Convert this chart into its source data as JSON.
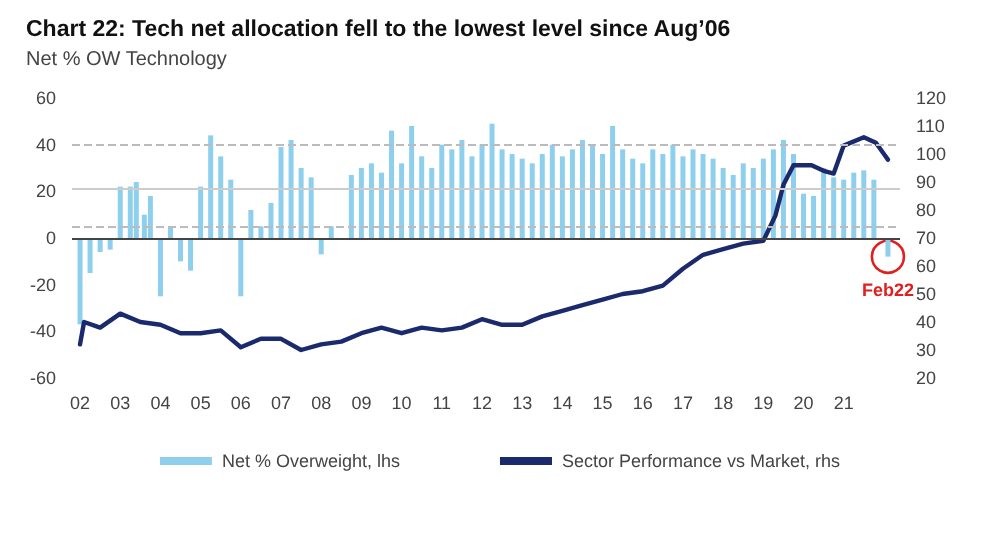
{
  "chart_data": {
    "type": "bar",
    "title": "Chart 22: Tech net allocation fell to the lowest level since Aug’06",
    "subtitle": "Net % OW Technology",
    "x": [
      2002.0,
      2002.25,
      2002.5,
      2002.75,
      2003.0,
      2003.25,
      2003.4,
      2003.6,
      2003.75,
      2004.0,
      2004.25,
      2004.5,
      2004.75,
      2005.0,
      2005.25,
      2005.5,
      2005.75,
      2006.0,
      2006.25,
      2006.5,
      2006.75,
      2007.0,
      2007.25,
      2007.5,
      2007.75,
      2008.0,
      2008.25,
      2008.5,
      2008.75,
      2009.0,
      2009.25,
      2009.5,
      2009.75,
      2010.0,
      2010.25,
      2010.5,
      2010.75,
      2011.0,
      2011.25,
      2011.5,
      2011.75,
      2012.0,
      2012.25,
      2012.5,
      2012.75,
      2013.0,
      2013.25,
      2013.5,
      2013.75,
      2014.0,
      2014.25,
      2014.5,
      2014.75,
      2015.0,
      2015.25,
      2015.5,
      2015.75,
      2016.0,
      2016.25,
      2016.5,
      2016.75,
      2017.0,
      2017.25,
      2017.5,
      2017.75,
      2018.0,
      2018.25,
      2018.5,
      2018.75,
      2019.0,
      2019.25,
      2019.5,
      2019.75,
      2020.0,
      2020.25,
      2020.5,
      2020.75,
      2021.0,
      2021.25,
      2021.5,
      2021.75,
      2022.1
    ],
    "xlim": [
      2001.8,
      2022.4
    ],
    "xticks": [
      {
        "value": 2002,
        "label": "02"
      },
      {
        "value": 2003,
        "label": "03"
      },
      {
        "value": 2004,
        "label": "04"
      },
      {
        "value": 2005,
        "label": "05"
      },
      {
        "value": 2006,
        "label": "06"
      },
      {
        "value": 2007,
        "label": "07"
      },
      {
        "value": 2008,
        "label": "08"
      },
      {
        "value": 2009,
        "label": "09"
      },
      {
        "value": 2010,
        "label": "10"
      },
      {
        "value": 2011,
        "label": "11"
      },
      {
        "value": 2012,
        "label": "12"
      },
      {
        "value": 2013,
        "label": "13"
      },
      {
        "value": 2014,
        "label": "14"
      },
      {
        "value": 2015,
        "label": "15"
      },
      {
        "value": 2016,
        "label": "16"
      },
      {
        "value": 2017,
        "label": "17"
      },
      {
        "value": 2018,
        "label": "18"
      },
      {
        "value": 2019,
        "label": "19"
      },
      {
        "value": 2020,
        "label": "20"
      },
      {
        "value": 2021,
        "label": "21"
      }
    ],
    "ylim": [
      -60,
      60
    ],
    "yticks": [
      -60,
      -40,
      -20,
      0,
      20,
      40,
      60
    ],
    "y2lim": [
      20,
      120
    ],
    "y2ticks": [
      20,
      30,
      40,
      50,
      60,
      70,
      80,
      90,
      100,
      110,
      120
    ],
    "series": [
      {
        "name": "Net % Overweight, lhs",
        "color": "#8ecfee",
        "values": [
          -37,
          -15,
          -6,
          -5,
          22,
          22,
          24,
          10,
          18,
          -25,
          5,
          -10,
          -14,
          22,
          44,
          35,
          25,
          -25,
          12,
          5,
          15,
          39,
          42,
          30,
          26,
          -7,
          5,
          0,
          27,
          30,
          32,
          28,
          46,
          32,
          48,
          35,
          30,
          40,
          38,
          42,
          35,
          40,
          49,
          38,
          36,
          34,
          32,
          36,
          40,
          35,
          38,
          42,
          40,
          36,
          48,
          38,
          34,
          32,
          38,
          36,
          40,
          35,
          38,
          36,
          34,
          30,
          27,
          32,
          30,
          34,
          38,
          42,
          36,
          19,
          18,
          30,
          26,
          25,
          28,
          29,
          25,
          -8
        ]
      },
      {
        "name": "Sector Performance vs Market, rhs",
        "type": "line",
        "axis": "y2",
        "color": "#1a2a6c",
        "marker": "none",
        "line_style": "solid",
        "x": [
          2002.0,
          2002.1,
          2002.5,
          2003.0,
          2003.5,
          2004.0,
          2004.5,
          2005.0,
          2005.5,
          2006.0,
          2006.5,
          2007.0,
          2007.5,
          2008.0,
          2008.5,
          2009.0,
          2009.5,
          2010.0,
          2010.5,
          2011.0,
          2011.5,
          2012.0,
          2012.5,
          2013.0,
          2013.5,
          2014.0,
          2014.5,
          2015.0,
          2015.5,
          2016.0,
          2016.5,
          2017.0,
          2017.5,
          2018.0,
          2018.5,
          2019.0,
          2019.3,
          2019.5,
          2019.75,
          2020.0,
          2020.2,
          2020.5,
          2020.75,
          2021.0,
          2021.5,
          2021.8,
          2022.0,
          2022.1
        ],
        "values": [
          32,
          40,
          38,
          43,
          40,
          39,
          36,
          36,
          37,
          31,
          34,
          34,
          30,
          32,
          33,
          36,
          38,
          36,
          38,
          37,
          38,
          41,
          39,
          39,
          42,
          44,
          46,
          48,
          50,
          51,
          53,
          59,
          64,
          66,
          68,
          69,
          78,
          89,
          96,
          96,
          96,
          94,
          93,
          103,
          106,
          104,
          100,
          98
        ]
      }
    ],
    "ref_lines": [
      {
        "axis": "y",
        "value": 40,
        "color": "#bbbbbb",
        "line_style": "dashed"
      },
      {
        "axis": "y",
        "value": 21,
        "color": "#cccccc",
        "line_style": "solid"
      },
      {
        "axis": "y",
        "value": 5,
        "color": "#bbbbbb",
        "line_style": "dashed"
      },
      {
        "axis": "y",
        "value": 0,
        "color": "#444444",
        "line_style": "solid"
      }
    ],
    "annotations": [
      {
        "text": "Feb22",
        "x": 2022.1,
        "y": -8
      }
    ],
    "legend": "bottom",
    "grid": false
  }
}
